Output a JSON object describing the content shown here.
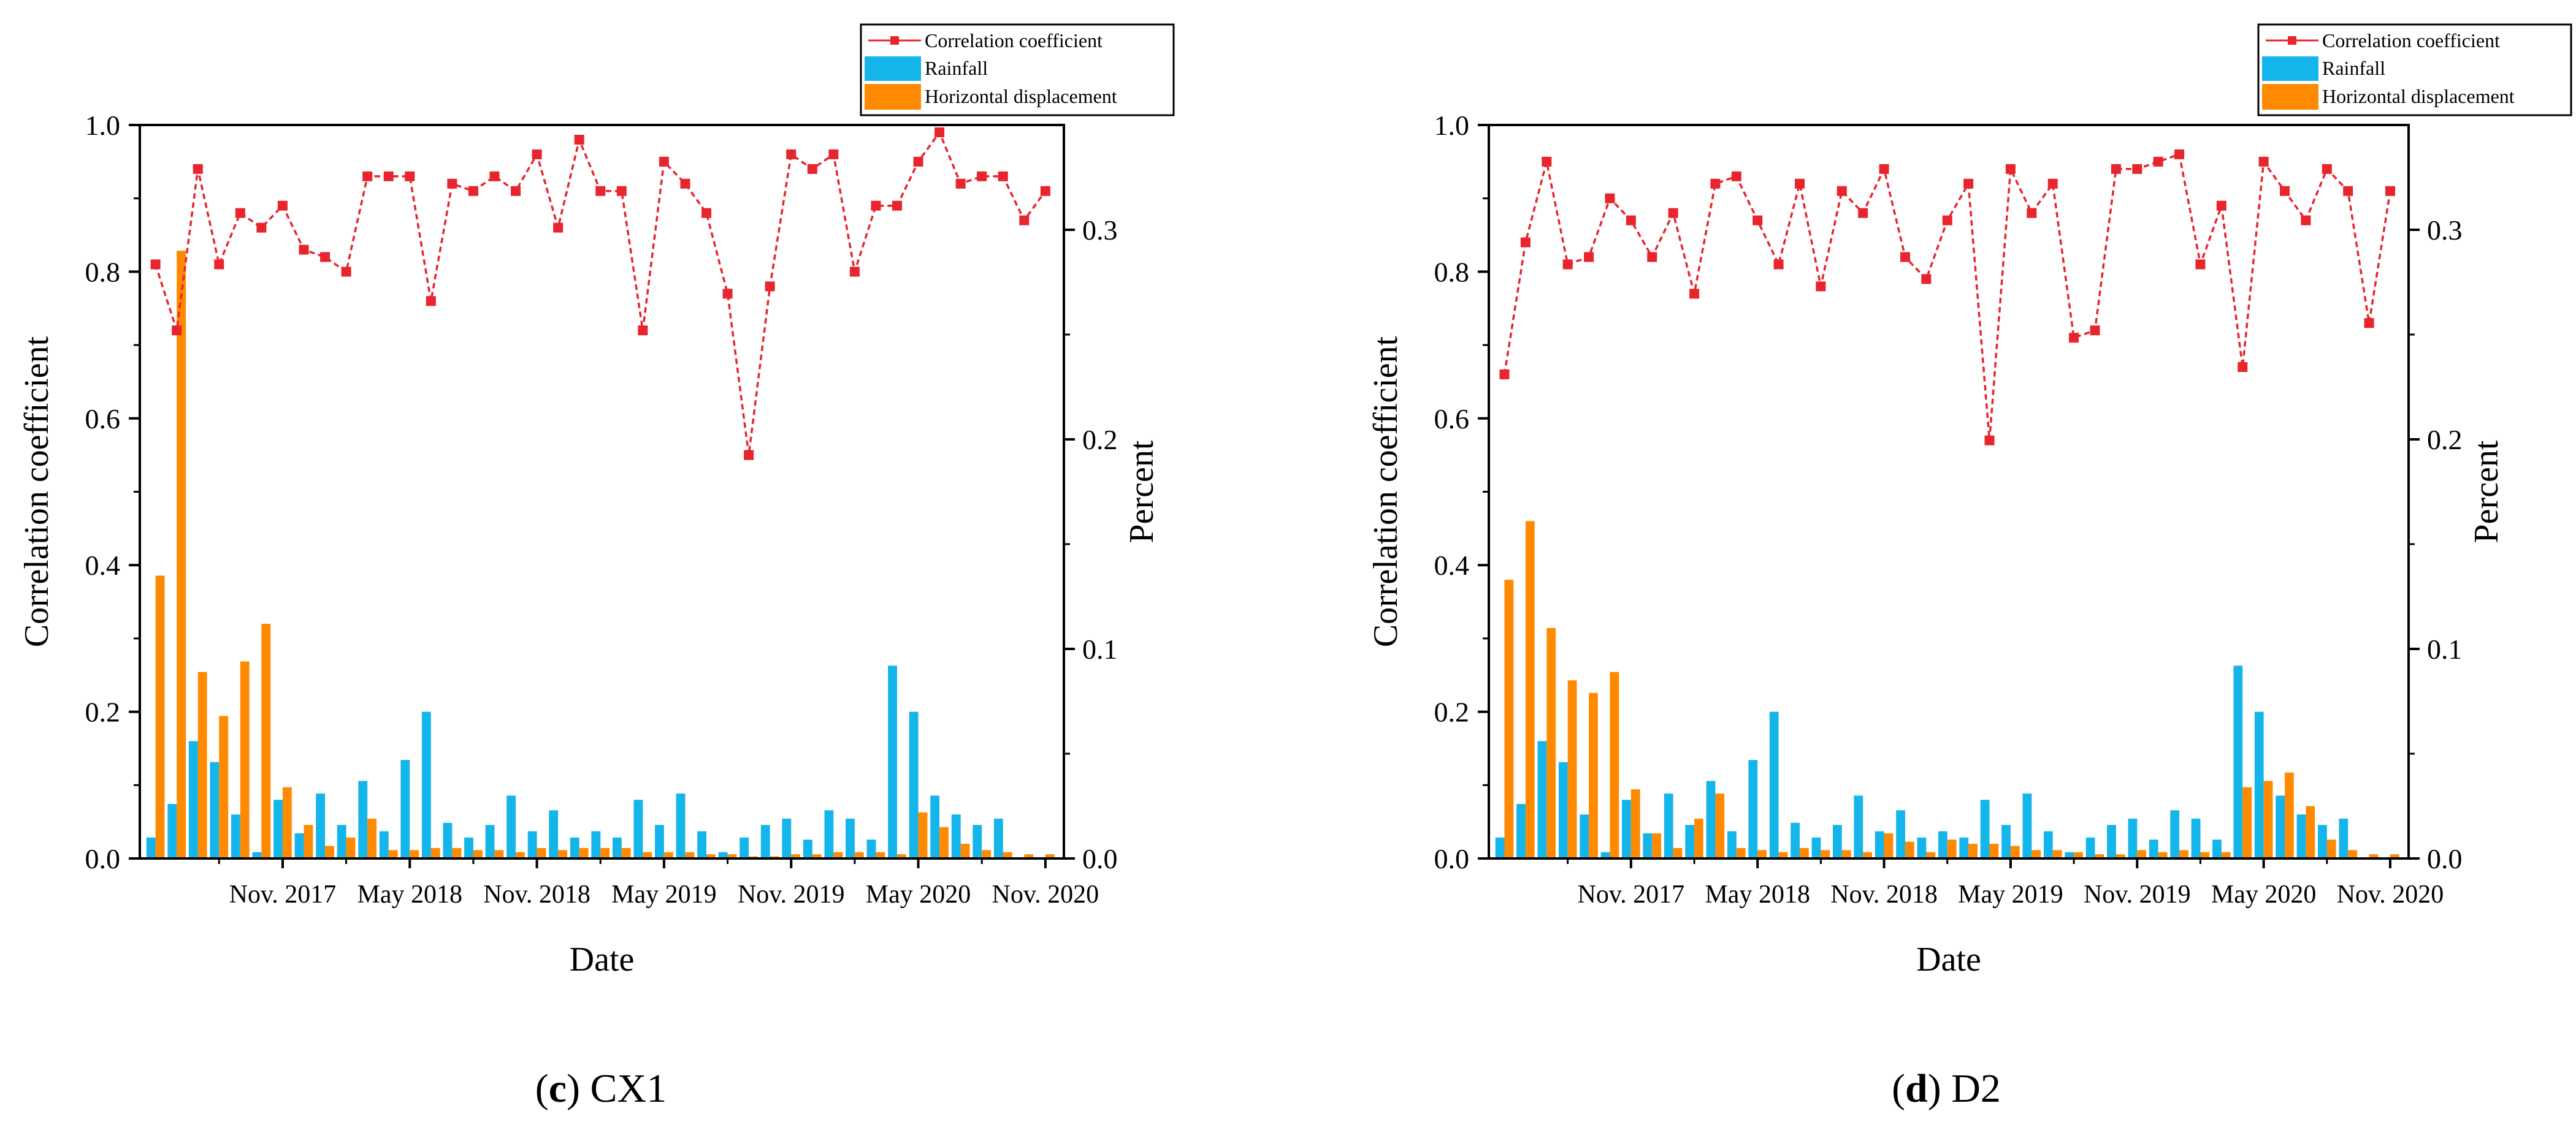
{
  "colors": {
    "line": "#e8242c",
    "rainfall": "#14b5ea",
    "displacement": "#ff8a00",
    "axis": "#000000"
  },
  "chart_data": [
    {
      "type": "bar+line",
      "panel_letter": "c",
      "panel_name": " CX1",
      "xlabel": "Date",
      "ylabel_left": "Correlation coefficient",
      "ylabel_right": "Percent",
      "ylim_left": [
        0,
        1.0
      ],
      "ylim_right": [
        0,
        0.35
      ],
      "yticks_left": [
        "0.0",
        "0.2",
        "0.4",
        "0.6",
        "0.8",
        "1.0"
      ],
      "yticks_right": [
        "0.0",
        "0.1",
        "0.2",
        "0.3"
      ],
      "x_tick_labels": [
        {
          "label": "Nov. 2017",
          "index": 6
        },
        {
          "label": "May 2018",
          "index": 12
        },
        {
          "label": "Nov. 2018",
          "index": 18
        },
        {
          "label": "May 2019",
          "index": 24
        },
        {
          "label": "Nov. 2019",
          "index": 30
        },
        {
          "label": "May 2020",
          "index": 36
        },
        {
          "label": "Nov. 2020",
          "index": 42
        }
      ],
      "legend": [
        "Correlation coefficient",
        "Rainfall",
        "Horizontal displacement"
      ],
      "series": [
        {
          "name": "Correlation coefficient",
          "type": "line",
          "axis": "left",
          "values": [
            0.81,
            0.72,
            0.94,
            0.81,
            0.88,
            0.86,
            0.89,
            0.83,
            0.82,
            0.8,
            0.93,
            0.93,
            0.93,
            0.76,
            0.92,
            0.91,
            0.93,
            0.91,
            0.96,
            0.86,
            0.98,
            0.91,
            0.91,
            0.72,
            0.95,
            0.92,
            0.88,
            0.77,
            0.55,
            0.78,
            0.96,
            0.94,
            0.96,
            0.8,
            0.89,
            0.89,
            0.95,
            0.99,
            0.92,
            0.93,
            0.93,
            0.87,
            0.91
          ]
        },
        {
          "name": "Rainfall",
          "type": "bar",
          "axis": "right",
          "values": [
            0.01,
            0.026,
            0.056,
            0.046,
            0.021,
            0.003,
            0.028,
            0.012,
            0.031,
            0.016,
            0.037,
            0.013,
            0.047,
            0.07,
            0.017,
            0.01,
            0.016,
            0.03,
            0.013,
            0.023,
            0.01,
            0.013,
            0.01,
            0.028,
            0.016,
            0.031,
            0.013,
            0.003,
            0.01,
            0.016,
            0.019,
            0.009,
            0.023,
            0.019,
            0.009,
            0.092,
            0.07,
            0.03,
            0.021,
            0.016,
            0.019,
            0.0,
            0.0
          ]
        },
        {
          "name": "Horizontal displacement",
          "type": "bar",
          "axis": "right",
          "values": [
            0.135,
            0.29,
            0.089,
            0.068,
            0.094,
            0.112,
            0.034,
            0.016,
            0.006,
            0.01,
            0.019,
            0.004,
            0.004,
            0.005,
            0.005,
            0.004,
            0.004,
            0.003,
            0.005,
            0.004,
            0.005,
            0.005,
            0.005,
            0.003,
            0.003,
            0.003,
            0.002,
            0.002,
            0.001,
            0.001,
            0.002,
            0.002,
            0.003,
            0.003,
            0.003,
            0.002,
            0.022,
            0.015,
            0.007,
            0.004,
            0.003,
            0.002,
            0.002
          ]
        }
      ]
    },
    {
      "type": "bar+line",
      "panel_letter": "d",
      "panel_name": " D2",
      "xlabel": "Date",
      "ylabel_left": "Correlation coefficient",
      "ylabel_right": "Percent",
      "ylim_left": [
        0,
        1.0
      ],
      "ylim_right": [
        0,
        0.35
      ],
      "yticks_left": [
        "0.0",
        "0.2",
        "0.4",
        "0.6",
        "0.8",
        "1.0"
      ],
      "yticks_right": [
        "0.0",
        "0.1",
        "0.2",
        "0.3"
      ],
      "x_tick_labels": [
        {
          "label": "Nov. 2017",
          "index": 6
        },
        {
          "label": "May 2018",
          "index": 12
        },
        {
          "label": "Nov. 2018",
          "index": 18
        },
        {
          "label": "May 2019",
          "index": 24
        },
        {
          "label": "Nov. 2019",
          "index": 30
        },
        {
          "label": "May 2020",
          "index": 36
        },
        {
          "label": "Nov. 2020",
          "index": 42
        }
      ],
      "legend": [
        "Correlation coefficient",
        "Rainfall",
        "Horizontal displacement"
      ],
      "series": [
        {
          "name": "Correlation coefficient",
          "type": "line",
          "axis": "left",
          "values": [
            0.66,
            0.84,
            0.95,
            0.81,
            0.82,
            0.9,
            0.87,
            0.82,
            0.88,
            0.77,
            0.92,
            0.93,
            0.87,
            0.81,
            0.92,
            0.78,
            0.91,
            0.88,
            0.94,
            0.82,
            0.79,
            0.87,
            0.92,
            0.57,
            0.94,
            0.88,
            0.92,
            0.71,
            0.72,
            0.94,
            0.94,
            0.95,
            0.96,
            0.81,
            0.89,
            0.67,
            0.95,
            0.91,
            0.87,
            0.94,
            0.91,
            0.73,
            0.91
          ]
        },
        {
          "name": "Rainfall",
          "type": "bar",
          "axis": "right",
          "values": [
            0.01,
            0.026,
            0.056,
            0.046,
            0.021,
            0.003,
            0.028,
            0.012,
            0.031,
            0.016,
            0.037,
            0.013,
            0.047,
            0.07,
            0.017,
            0.01,
            0.016,
            0.03,
            0.013,
            0.023,
            0.01,
            0.013,
            0.01,
            0.028,
            0.016,
            0.031,
            0.013,
            0.003,
            0.01,
            0.016,
            0.019,
            0.009,
            0.023,
            0.019,
            0.009,
            0.092,
            0.07,
            0.03,
            0.021,
            0.016,
            0.019,
            0.0,
            0.0
          ]
        },
        {
          "name": "Horizontal displacement",
          "type": "bar",
          "axis": "right",
          "values": [
            0.133,
            0.161,
            0.11,
            0.085,
            0.079,
            0.089,
            0.033,
            0.012,
            0.005,
            0.019,
            0.031,
            0.005,
            0.004,
            0.003,
            0.005,
            0.004,
            0.004,
            0.003,
            0.012,
            0.008,
            0.003,
            0.009,
            0.007,
            0.007,
            0.006,
            0.004,
            0.004,
            0.003,
            0.002,
            0.002,
            0.004,
            0.003,
            0.004,
            0.003,
            0.003,
            0.034,
            0.037,
            0.041,
            0.025,
            0.009,
            0.004,
            0.002,
            0.002
          ]
        }
      ]
    }
  ]
}
